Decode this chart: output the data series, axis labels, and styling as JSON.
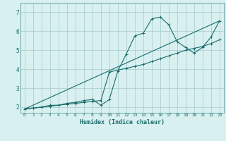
{
  "title": "",
  "xlabel": "Humidex (Indice chaleur)",
  "bg_color": "#d8f0f0",
  "grid_color": "#a8c8c8",
  "line_color": "#1a6b6b",
  "xlim": [
    -0.5,
    23.5
  ],
  "ylim": [
    1.7,
    7.5
  ],
  "xticks": [
    0,
    1,
    2,
    3,
    4,
    5,
    6,
    7,
    8,
    9,
    10,
    11,
    12,
    13,
    14,
    15,
    16,
    17,
    18,
    19,
    20,
    21,
    22,
    23
  ],
  "yticks": [
    2,
    3,
    4,
    5,
    6,
    7
  ],
  "curve1_x": [
    0,
    1,
    2,
    3,
    4,
    5,
    6,
    7,
    8,
    9,
    10,
    11,
    12,
    13,
    14,
    15,
    16,
    17,
    18,
    19,
    20,
    21,
    22,
    23
  ],
  "curve1_y": [
    1.9,
    1.95,
    2.0,
    2.1,
    2.1,
    2.2,
    2.25,
    2.35,
    2.4,
    2.1,
    2.4,
    3.9,
    4.8,
    5.75,
    5.9,
    6.65,
    6.75,
    6.35,
    5.45,
    5.15,
    4.85,
    5.15,
    5.7,
    6.55
  ],
  "curve2_x": [
    0,
    1,
    2,
    3,
    4,
    5,
    6,
    7,
    8,
    9,
    10,
    11,
    12,
    13,
    14,
    15,
    16,
    17,
    18,
    19,
    20,
    21,
    22,
    23
  ],
  "curve2_y": [
    1.9,
    1.95,
    2.0,
    2.05,
    2.1,
    2.15,
    2.2,
    2.25,
    2.3,
    2.35,
    3.85,
    3.95,
    4.05,
    4.15,
    4.25,
    4.4,
    4.55,
    4.7,
    4.85,
    5.0,
    5.1,
    5.2,
    5.35,
    5.55
  ],
  "curve3_x": [
    0,
    23
  ],
  "curve3_y": [
    1.9,
    6.55
  ]
}
